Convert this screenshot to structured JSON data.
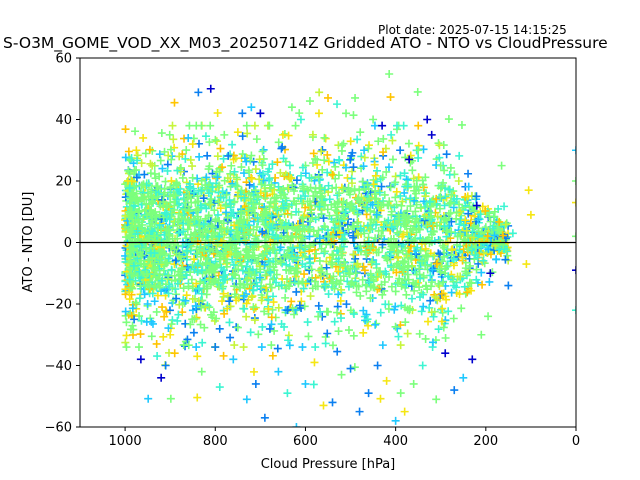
{
  "header": {
    "plot_date": "Plot date: 2025-07-15 14:15:25",
    "title": "S-O3M_GOME_VOD_XX_M03_20250714Z Gridded ATO - NTO vs CloudPressure"
  },
  "chart_data": {
    "type": "scatter",
    "title": "S-O3M_GOME_VOD_XX_M03_20250714Z Gridded ATO - NTO vs CloudPressure",
    "xlabel": "Cloud Pressure [hPa]",
    "ylabel": "ATO - NTO [DU]",
    "xlim": [
      1100,
      0
    ],
    "ylim": [
      -60,
      60
    ],
    "x_inverted": true,
    "xticks": [
      1000,
      800,
      600,
      400,
      200,
      0
    ],
    "yticks": [
      60,
      40,
      20,
      0,
      -20,
      -40,
      -60
    ],
    "xtick_labels": [
      "1000",
      "800",
      "600",
      "400",
      "200",
      "0"
    ],
    "ytick_labels": [
      "60",
      "40",
      "20",
      "0",
      "−20",
      "−40",
      "−60"
    ],
    "reference_line_y": 0,
    "marker": "plus",
    "grid": false,
    "legend": "none",
    "colormap": [
      "#0000cd",
      "#0a7ff0",
      "#1ec8ff",
      "#3cf5d2",
      "#7cff7c",
      "#c6f53a",
      "#f5e612",
      "#ffc400"
    ],
    "points": [
      {
        "x": 1000,
        "y": 5,
        "c": 0.5
      },
      {
        "x": 990,
        "y": -12,
        "c": 0.4
      },
      {
        "x": 985,
        "y": 20,
        "c": 0.8
      },
      {
        "x": 980,
        "y": -25,
        "c": 0.1
      },
      {
        "x": 975,
        "y": 30,
        "c": 0.9
      },
      {
        "x": 970,
        "y": 10,
        "c": 0.6
      },
      {
        "x": 965,
        "y": -38,
        "c": 0.0
      },
      {
        "x": 960,
        "y": 34,
        "c": 0.9
      },
      {
        "x": 950,
        "y": -20,
        "c": 0.3
      },
      {
        "x": 940,
        "y": 25,
        "c": 0.7
      },
      {
        "x": 930,
        "y": -33,
        "c": 0.95
      },
      {
        "x": 920,
        "y": -44,
        "c": 0.05
      },
      {
        "x": 910,
        "y": -40,
        "c": 0.1
      },
      {
        "x": 900,
        "y": -30,
        "c": 0.9
      },
      {
        "x": 890,
        "y": -36,
        "c": 0.95
      },
      {
        "x": 880,
        "y": 28,
        "c": 0.7
      },
      {
        "x": 860,
        "y": 34,
        "c": 0.3
      },
      {
        "x": 850,
        "y": 32,
        "c": 0.8
      },
      {
        "x": 840,
        "y": -37,
        "c": 0.9
      },
      {
        "x": 830,
        "y": -42,
        "c": 0.6
      },
      {
        "x": 810,
        "y": 50,
        "c": 0.0
      },
      {
        "x": 800,
        "y": -34,
        "c": 0.1
      },
      {
        "x": 790,
        "y": -47,
        "c": 0.4
      },
      {
        "x": 780,
        "y": 35,
        "c": 0.5
      },
      {
        "x": 760,
        "y": -38,
        "c": 0.3
      },
      {
        "x": 740,
        "y": 42,
        "c": 0.1
      },
      {
        "x": 730,
        "y": -51,
        "c": 0.25
      },
      {
        "x": 720,
        "y": 44,
        "c": 0.3
      },
      {
        "x": 710,
        "y": -46,
        "c": 0.2
      },
      {
        "x": 700,
        "y": 42,
        "c": 0.0
      },
      {
        "x": 690,
        "y": -57,
        "c": 0.2
      },
      {
        "x": 680,
        "y": 38,
        "c": 0.6
      },
      {
        "x": 660,
        "y": -42,
        "c": 0.3
      },
      {
        "x": 650,
        "y": 35,
        "c": 0.9
      },
      {
        "x": 640,
        "y": -49,
        "c": 0.4
      },
      {
        "x": 630,
        "y": 44,
        "c": 0.5
      },
      {
        "x": 620,
        "y": -60,
        "c": 0.25
      },
      {
        "x": 610,
        "y": 40,
        "c": 0.4
      },
      {
        "x": 600,
        "y": -46,
        "c": 0.3
      },
      {
        "x": 590,
        "y": 46,
        "c": 0.5
      },
      {
        "x": 580,
        "y": -39,
        "c": 0.8
      },
      {
        "x": 570,
        "y": 42,
        "c": 0.8
      },
      {
        "x": 560,
        "y": -53,
        "c": 0.9
      },
      {
        "x": 550,
        "y": 47,
        "c": 0.95
      },
      {
        "x": 540,
        "y": -52,
        "c": 0.1
      },
      {
        "x": 530,
        "y": 45,
        "c": 0.4
      },
      {
        "x": 520,
        "y": -43,
        "c": 0.6
      },
      {
        "x": 510,
        "y": 42,
        "c": 0.5
      },
      {
        "x": 500,
        "y": -41,
        "c": 0.2
      },
      {
        "x": 490,
        "y": 47,
        "c": 0.5
      },
      {
        "x": 480,
        "y": -55,
        "c": 0.2
      },
      {
        "x": 470,
        "y": 30,
        "c": 0.3
      },
      {
        "x": 460,
        "y": -49,
        "c": 0.2
      },
      {
        "x": 450,
        "y": 40,
        "c": 0.5
      },
      {
        "x": 440,
        "y": -40,
        "c": 0.1
      },
      {
        "x": 430,
        "y": 38,
        "c": 0.0
      },
      {
        "x": 420,
        "y": -45,
        "c": 0.9
      },
      {
        "x": 410,
        "y": 35,
        "c": 0.4
      },
      {
        "x": 400,
        "y": -58,
        "c": 0.3
      },
      {
        "x": 390,
        "y": 30,
        "c": 0.2
      },
      {
        "x": 380,
        "y": -55,
        "c": 0.9
      },
      {
        "x": 370,
        "y": 27,
        "c": 0.0
      },
      {
        "x": 360,
        "y": -46,
        "c": 0.5
      },
      {
        "x": 350,
        "y": 30,
        "c": 0.6
      },
      {
        "x": 340,
        "y": -40,
        "c": 0.4
      },
      {
        "x": 330,
        "y": 40,
        "c": 0.0
      },
      {
        "x": 320,
        "y": 35,
        "c": 0.0
      },
      {
        "x": 310,
        "y": -51,
        "c": 0.5
      },
      {
        "x": 300,
        "y": 25,
        "c": 0.5
      },
      {
        "x": 290,
        "y": -36,
        "c": 0.0
      },
      {
        "x": 280,
        "y": 22,
        "c": 0.4
      },
      {
        "x": 270,
        "y": -48,
        "c": 0.1
      },
      {
        "x": 260,
        "y": 20,
        "c": 0.7
      },
      {
        "x": 250,
        "y": -44,
        "c": 0.3
      },
      {
        "x": 240,
        "y": 15,
        "c": 0.8
      },
      {
        "x": 230,
        "y": -38,
        "c": 0.0
      },
      {
        "x": 220,
        "y": 12,
        "c": 0.0
      },
      {
        "x": 210,
        "y": -30,
        "c": 0.5
      },
      {
        "x": 200,
        "y": 5,
        "c": 0.6
      },
      {
        "x": 195,
        "y": -24,
        "c": 0.6
      },
      {
        "x": 190,
        "y": -10,
        "c": 0.0
      },
      {
        "x": 180,
        "y": 10,
        "c": 0.5
      },
      {
        "x": 165,
        "y": 25,
        "c": 0.5
      },
      {
        "x": 150,
        "y": -14,
        "c": 0.2
      },
      {
        "x": 140,
        "y": 3,
        "c": 0.4
      },
      {
        "x": 110,
        "y": -7,
        "c": 0.8
      },
      {
        "x": 105,
        "y": 17,
        "c": 0.85
      },
      {
        "x": 100,
        "y": 9,
        "c": 0.85
      },
      {
        "x": 0,
        "y": 30,
        "c": 0.3
      },
      {
        "x": 0,
        "y": 20,
        "c": 0.5
      },
      {
        "x": 0,
        "y": 13,
        "c": 0.9
      },
      {
        "x": 0,
        "y": 2,
        "c": 0.5
      },
      {
        "x": 0,
        "y": -9,
        "c": 0.0
      },
      {
        "x": 0,
        "y": -22,
        "c": 0.4
      }
    ],
    "dense_cloud": {
      "count": 2600,
      "x_range": [
        1000,
        150
      ],
      "y_center": 2,
      "y_spread_inner": 30,
      "y_spread_outer": 44
    }
  }
}
